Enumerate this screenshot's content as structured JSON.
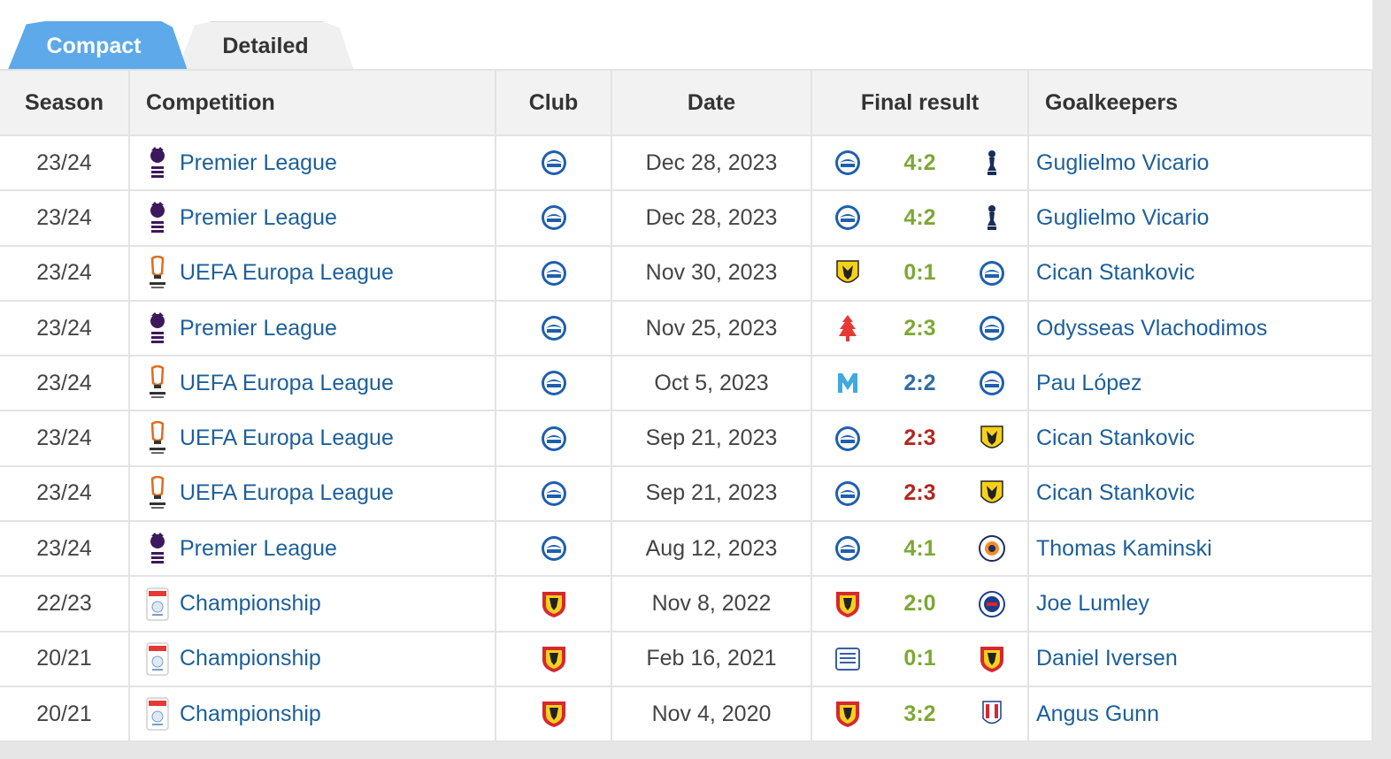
{
  "tabs": {
    "compact": "Compact",
    "detailed": "Detailed"
  },
  "colors": {
    "win": "#7ca833",
    "draw": "#2f6ea5",
    "loss": "#b3261e",
    "link": "#1d5f99",
    "tab_active": "#5da9e9"
  },
  "headers": {
    "season": "Season",
    "competition": "Competition",
    "club": "Club",
    "date": "Date",
    "final_result": "Final result",
    "goalkeepers": "Goalkeepers"
  },
  "rows": [
    {
      "season": "23/24",
      "competition": "Premier League",
      "comp_icon": "premier-league-icon",
      "club_icon": "brighton-crest-icon",
      "date": "Dec 28, 2023",
      "home_icon": "brighton-crest-icon",
      "score": "4:2",
      "outcome": "win",
      "away_icon": "tottenham-crest-icon",
      "goalkeeper": "Guglielmo Vicario"
    },
    {
      "season": "23/24",
      "competition": "Premier League",
      "comp_icon": "premier-league-icon",
      "club_icon": "brighton-crest-icon",
      "date": "Dec 28, 2023",
      "home_icon": "brighton-crest-icon",
      "score": "4:2",
      "outcome": "win",
      "away_icon": "tottenham-crest-icon",
      "goalkeeper": "Guglielmo Vicario"
    },
    {
      "season": "23/24",
      "competition": "UEFA Europa League",
      "comp_icon": "europa-league-icon",
      "club_icon": "brighton-crest-icon",
      "date": "Nov 30, 2023",
      "home_icon": "aek-athens-crest-icon",
      "score": "0:1",
      "outcome": "win",
      "away_icon": "brighton-crest-icon",
      "goalkeeper": "Cican Stankovic"
    },
    {
      "season": "23/24",
      "competition": "Premier League",
      "comp_icon": "premier-league-icon",
      "club_icon": "brighton-crest-icon",
      "date": "Nov 25, 2023",
      "home_icon": "nottingham-forest-crest-icon",
      "score": "2:3",
      "outcome": "win",
      "away_icon": "brighton-crest-icon",
      "goalkeeper": "Odysseas Vlachodimos"
    },
    {
      "season": "23/24",
      "competition": "UEFA Europa League",
      "comp_icon": "europa-league-icon",
      "club_icon": "brighton-crest-icon",
      "date": "Oct 5, 2023",
      "home_icon": "marseille-crest-icon",
      "score": "2:2",
      "outcome": "draw",
      "away_icon": "brighton-crest-icon",
      "goalkeeper": "Pau López"
    },
    {
      "season": "23/24",
      "competition": "UEFA Europa League",
      "comp_icon": "europa-league-icon",
      "club_icon": "brighton-crest-icon",
      "date": "Sep 21, 2023",
      "home_icon": "brighton-crest-icon",
      "score": "2:3",
      "outcome": "loss",
      "away_icon": "aek-athens-crest-icon",
      "goalkeeper": "Cican Stankovic"
    },
    {
      "season": "23/24",
      "competition": "UEFA Europa League",
      "comp_icon": "europa-league-icon",
      "club_icon": "brighton-crest-icon",
      "date": "Sep 21, 2023",
      "home_icon": "brighton-crest-icon",
      "score": "2:3",
      "outcome": "loss",
      "away_icon": "aek-athens-crest-icon",
      "goalkeeper": "Cican Stankovic"
    },
    {
      "season": "23/24",
      "competition": "Premier League",
      "comp_icon": "premier-league-icon",
      "club_icon": "brighton-crest-icon",
      "date": "Aug 12, 2023",
      "home_icon": "brighton-crest-icon",
      "score": "4:1",
      "outcome": "win",
      "away_icon": "luton-town-crest-icon",
      "goalkeeper": "Thomas Kaminski"
    },
    {
      "season": "22/23",
      "competition": "Championship",
      "comp_icon": "championship-icon",
      "club_icon": "watford-crest-icon",
      "date": "Nov 8, 2022",
      "home_icon": "watford-crest-icon",
      "score": "2:0",
      "outcome": "win",
      "away_icon": "reading-crest-icon",
      "goalkeeper": "Joe Lumley"
    },
    {
      "season": "20/21",
      "competition": "Championship",
      "comp_icon": "championship-icon",
      "club_icon": "watford-crest-icon",
      "date": "Feb 16, 2021",
      "home_icon": "preston-crest-icon",
      "score": "0:1",
      "outcome": "win",
      "away_icon": "watford-crest-icon",
      "goalkeeper": "Daniel Iversen"
    },
    {
      "season": "20/21",
      "competition": "Championship",
      "comp_icon": "championship-icon",
      "club_icon": "watford-crest-icon",
      "date": "Nov 4, 2020",
      "home_icon": "watford-crest-icon",
      "score": "3:2",
      "outcome": "win",
      "away_icon": "stoke-city-crest-icon",
      "goalkeeper": "Angus Gunn"
    }
  ]
}
